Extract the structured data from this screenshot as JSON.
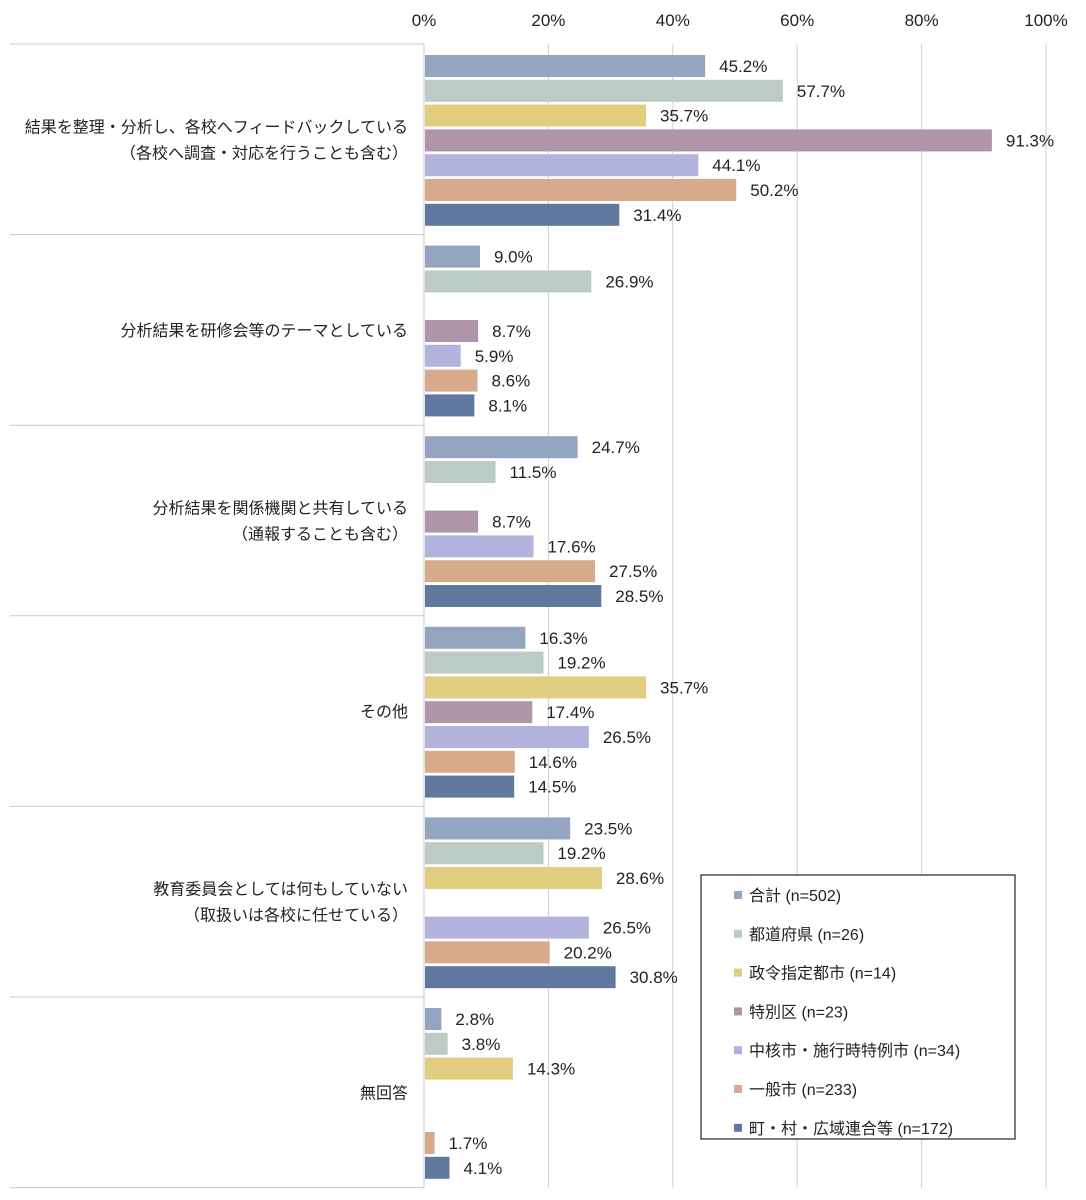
{
  "chart_data": {
    "type": "bar",
    "orientation": "horizontal",
    "xlim": [
      0,
      100
    ],
    "x_ticks": [
      "0%",
      "20%",
      "40%",
      "60%",
      "80%",
      "100%"
    ],
    "grid": true,
    "legend_position": "bottom-right",
    "categories": [
      [
        "結果を整理・分析し、各校へフィードバックしている",
        "（各校へ調査・対応を行うことも含む）"
      ],
      [
        "分析結果を研修会等のテーマとしている"
      ],
      [
        "分析結果を関係機関と共有している",
        "（通報することも含む）"
      ],
      [
        "その他"
      ],
      [
        "教育委員会としては何もしていない",
        "（取扱いは各校に任せている）"
      ],
      [
        "無回答"
      ]
    ],
    "series": [
      {
        "name": "合計 (n=502)",
        "color": "#94a5bf",
        "values": [
          45.2,
          9.0,
          24.7,
          16.3,
          23.5,
          2.8
        ]
      },
      {
        "name": "都道府県 (n=26)",
        "color": "#bccbc3",
        "values": [
          57.7,
          26.9,
          11.5,
          19.2,
          19.2,
          3.8
        ]
      },
      {
        "name": "政令指定都市 (n=14)",
        "color": "#e1cd7f",
        "values": [
          35.7,
          null,
          null,
          35.7,
          28.6,
          14.3
        ]
      },
      {
        "name": "特別区 (n=23)",
        "color": "#ae95a8",
        "values": [
          91.3,
          8.7,
          8.7,
          17.4,
          null,
          null
        ]
      },
      {
        "name": "中核市・施行時特例市 (n=34)",
        "color": "#b1b3dc",
        "values": [
          44.1,
          5.9,
          17.6,
          26.5,
          26.5,
          null
        ]
      },
      {
        "name": "一般市 (n=233)",
        "color": "#d6aa8b",
        "values": [
          50.2,
          8.6,
          27.5,
          14.6,
          20.2,
          1.7
        ]
      },
      {
        "name": "町・村・広域連合等 (n=172)",
        "color": "#60789e",
        "values": [
          31.4,
          8.1,
          28.5,
          14.5,
          30.8,
          4.1
        ]
      }
    ]
  }
}
